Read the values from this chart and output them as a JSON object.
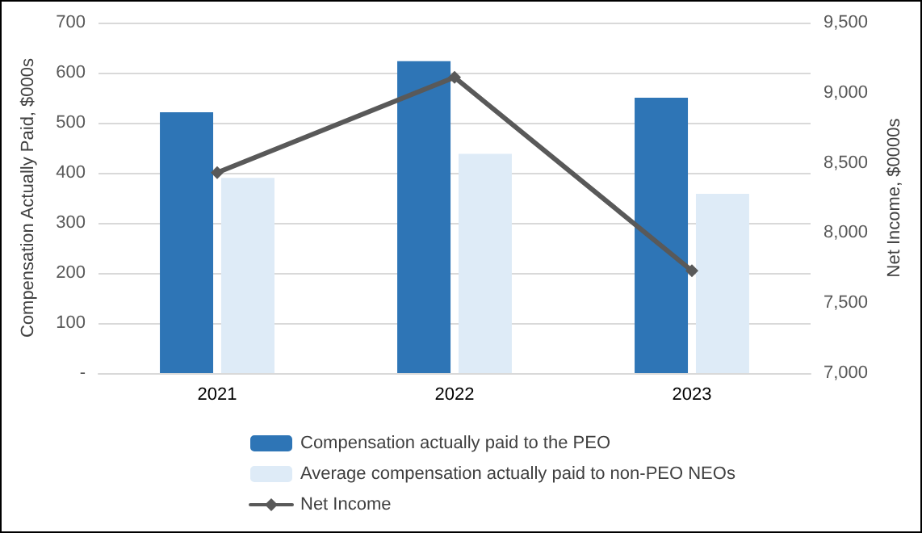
{
  "chart_data": {
    "type": "bar",
    "categories": [
      "2021",
      "2022",
      "2023"
    ],
    "ylabel": "Compensation Actually Paid, $000s",
    "y2label": "Net Income, $0000s",
    "series": [
      {
        "name": "Compensation actually paid to the PEO",
        "color": "#2e75b6",
        "values": [
          521,
          623,
          550
        ]
      },
      {
        "name": "Average compensation actually paid to non-PEO NEOs",
        "color": "#deebf7",
        "values": [
          390,
          438,
          358
        ]
      },
      {
        "name": "Net Income",
        "type": "line",
        "axis": "y2",
        "color": "#595959",
        "marker": "diamond",
        "values": [
          8430,
          9110,
          7730
        ]
      }
    ],
    "ylim": [
      0,
      700
    ],
    "yticks": [
      {
        "value": 0,
        "label": "-"
      },
      100,
      200,
      300,
      400,
      500,
      600,
      700
    ],
    "y2lim": [
      7000,
      9500
    ],
    "y2ticks": [
      {
        "value": 7000,
        "label": "7,000"
      },
      {
        "value": 7500,
        "label": "7,500"
      },
      {
        "value": 8000,
        "label": "8,000"
      },
      {
        "value": 8500,
        "label": "8,500"
      },
      {
        "value": 9000,
        "label": "9,000"
      },
      {
        "value": 9500,
        "label": "9,500"
      }
    ],
    "grid": "y",
    "legend": "bottom"
  }
}
